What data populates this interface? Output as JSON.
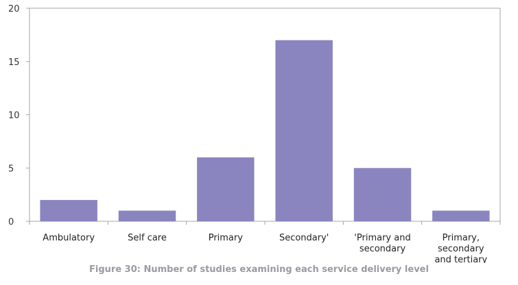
{
  "chart_data": {
    "type": "bar",
    "categories": [
      "Ambulatory",
      "Self care",
      "Primary",
      "Secondary'",
      "'Primary and secondary",
      "Primary, secondary and tertiary"
    ],
    "category_lines": [
      [
        "Ambulatory"
      ],
      [
        "Self care"
      ],
      [
        "Primary"
      ],
      [
        "Secondary'"
      ],
      [
        "'Primary and",
        "secondary"
      ],
      [
        "Primary,",
        "secondary",
        "and tertiary"
      ]
    ],
    "values": [
      2,
      1,
      6,
      17,
      5,
      1
    ],
    "ylim": [
      0,
      20
    ],
    "yticks": [
      0,
      5,
      10,
      15,
      20
    ],
    "title": "",
    "xlabel": "",
    "ylabel": "",
    "caption": "Figure 30: Number of studies examining each service delivery level",
    "bar_color": "#8a85bf",
    "grid": false,
    "legend": "none"
  }
}
